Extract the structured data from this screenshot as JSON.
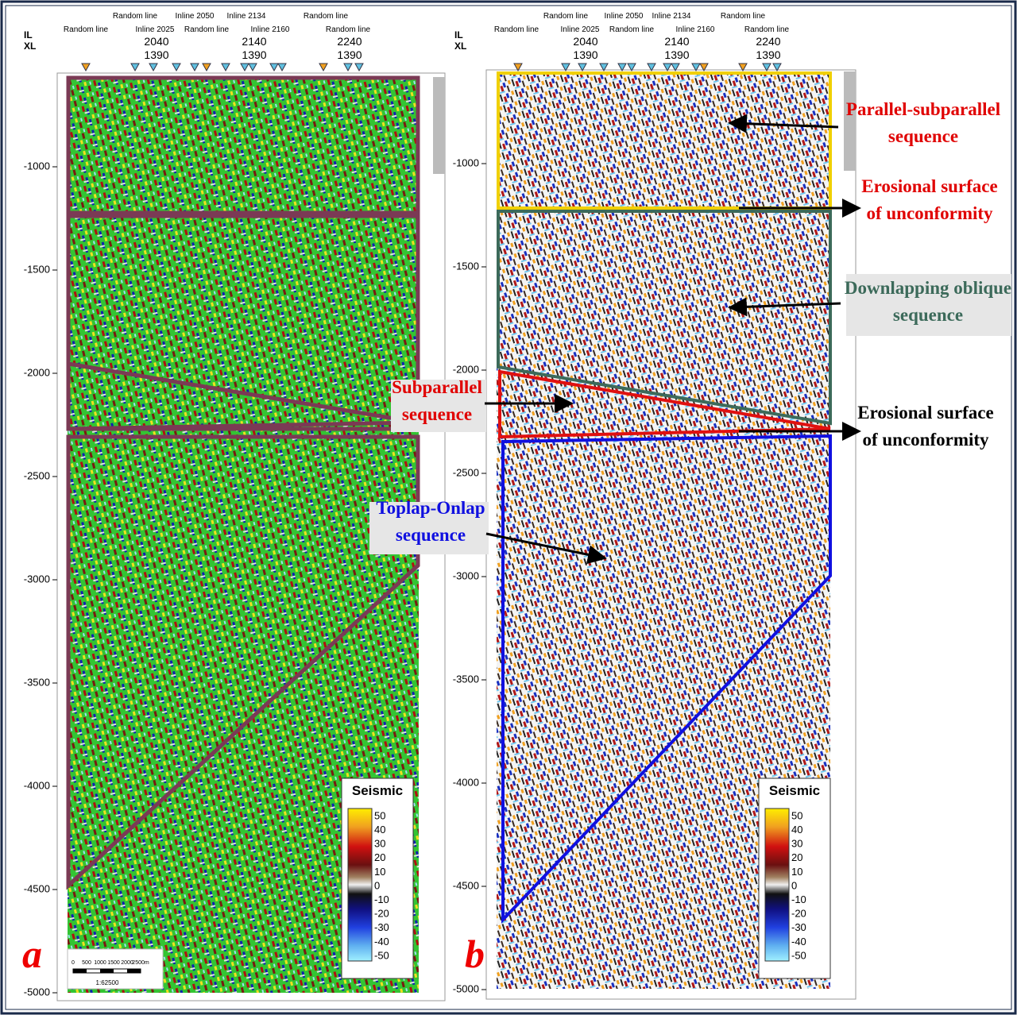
{
  "panels": [
    {
      "label": "a",
      "il_label": "IL",
      "xl_label": "XL",
      "top_lines": [
        "Random line",
        "Inline 2050",
        "Inline 2134",
        "Random line",
        "Random line",
        "Inline 2025",
        "Random line",
        "Inline 2160",
        "Random line"
      ],
      "il_values": [
        "2040",
        "2140",
        "2240"
      ],
      "xl_values": [
        "1390",
        "1390",
        "1390"
      ],
      "yticks": [
        -1000,
        -1500,
        -2000,
        -2500,
        -3000,
        -3500,
        -4000,
        -4500,
        -5000
      ],
      "colorbar": {
        "title": "Seismic",
        "ticks": [
          50,
          40,
          30,
          20,
          10,
          0,
          -10,
          -20,
          -30,
          -40,
          -50
        ]
      },
      "scale_bar": {
        "ticks": [
          "0",
          "500",
          "1000",
          "1500",
          "2000",
          "2500m"
        ],
        "ratio": "1:62500"
      }
    },
    {
      "label": "b",
      "il_label": "IL",
      "xl_label": "XL",
      "top_lines": [
        "Random line",
        "Inline 2050",
        "Inline 2134",
        "Random line",
        "Random line",
        "Inline 2025",
        "Random line",
        "Inline 2160",
        "Random line"
      ],
      "il_values": [
        "2040",
        "2140",
        "2240"
      ],
      "xl_values": [
        "1390",
        "1390",
        "1390"
      ],
      "yticks": [
        -1000,
        -1500,
        -2000,
        -2500,
        -3000,
        -3500,
        -4000,
        -4500,
        -5000
      ],
      "colorbar": {
        "title": "Seismic",
        "ticks": [
          50,
          40,
          30,
          20,
          10,
          0,
          -10,
          -20,
          -30,
          -40,
          -50
        ]
      }
    }
  ],
  "annotations": [
    {
      "lines": [
        "Parallel-subparallel",
        "sequence"
      ]
    },
    {
      "lines": [
        "Erosional surface",
        "of unconformity"
      ]
    },
    {
      "lines": [
        "Downlapping oblique",
        "sequence"
      ]
    },
    {
      "lines": [
        "Erosional surface",
        "of unconformity"
      ]
    },
    {
      "lines": [
        "Subparallel",
        "sequence"
      ]
    },
    {
      "lines": [
        "Toplap-Onlap",
        "sequence"
      ]
    }
  ]
}
